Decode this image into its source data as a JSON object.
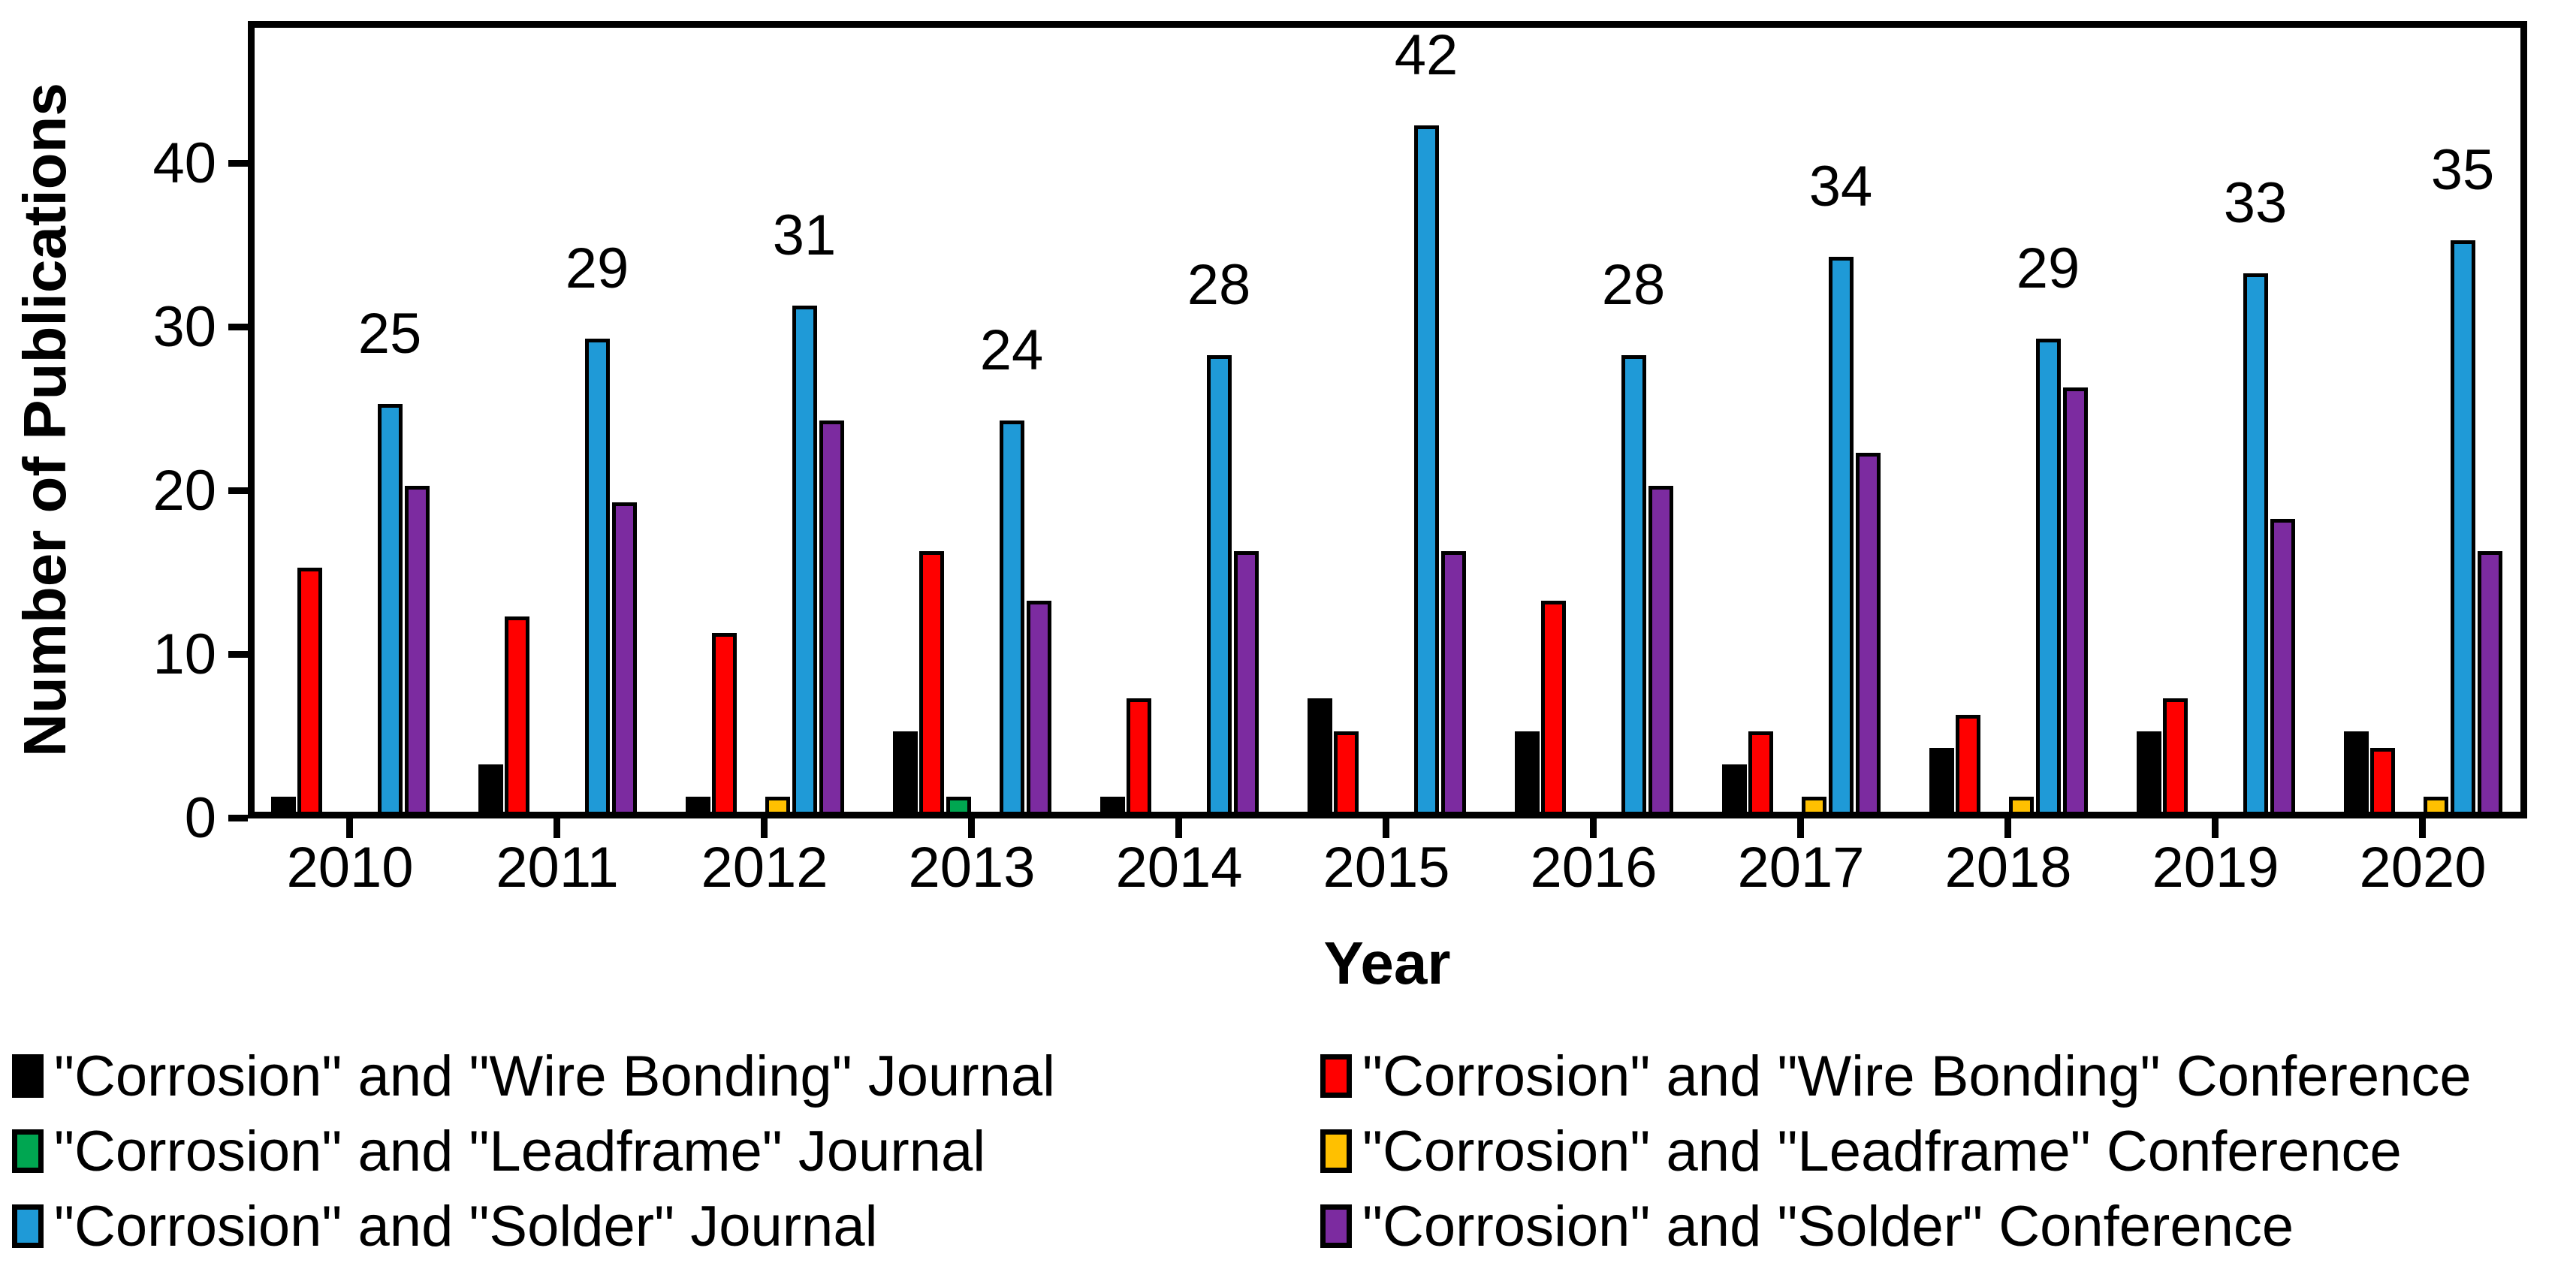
{
  "chart_data": {
    "type": "bar",
    "title": "",
    "xlabel": "Year",
    "ylabel": "Number of Publications",
    "categories": [
      "2010",
      "2011",
      "2012",
      "2013",
      "2014",
      "2015",
      "2016",
      "2017",
      "2018",
      "2019",
      "2020"
    ],
    "yticks": [
      0,
      10,
      20,
      30,
      40
    ],
    "ylim": [
      0,
      48
    ],
    "grid": false,
    "legend_position": "bottom-two-columns",
    "bar_outline_color": "#000000",
    "series": [
      {
        "name": "\"Corrosion\" and \"Wire Bonding\" Journal",
        "color": "#000000",
        "values": [
          1,
          3,
          1,
          5,
          1,
          7,
          5,
          3,
          4,
          5,
          5
        ]
      },
      {
        "name": "\"Corrosion\" and \"Wire Bonding\" Conference",
        "color": "#FF0000",
        "values": [
          15,
          12,
          11,
          16,
          7,
          5,
          13,
          5,
          6,
          7,
          4
        ]
      },
      {
        "name": "\"Corrosion\" and \"Leadframe\" Journal",
        "color": "#00A651",
        "values": [
          0,
          0,
          0,
          1,
          0,
          0,
          0,
          0,
          0,
          0,
          0
        ]
      },
      {
        "name": "\"Corrosion\" and \"Leadframe\" Conference",
        "color": "#FFC000",
        "values": [
          0,
          0,
          1,
          0,
          0,
          0,
          0,
          1,
          1,
          0,
          1
        ]
      },
      {
        "name": "\"Corrosion\" and \"Solder\" Journal",
        "color": "#1F9AD7",
        "values": [
          25,
          29,
          31,
          24,
          28,
          42,
          28,
          34,
          29,
          33,
          35
        ],
        "show_value_labels": true
      },
      {
        "name": "\"Corrosion\" and \"Solder\" Conference",
        "color": "#7C2BA0",
        "values": [
          20,
          19,
          24,
          13,
          16,
          16,
          20,
          22,
          26,
          18,
          16
        ]
      }
    ]
  }
}
